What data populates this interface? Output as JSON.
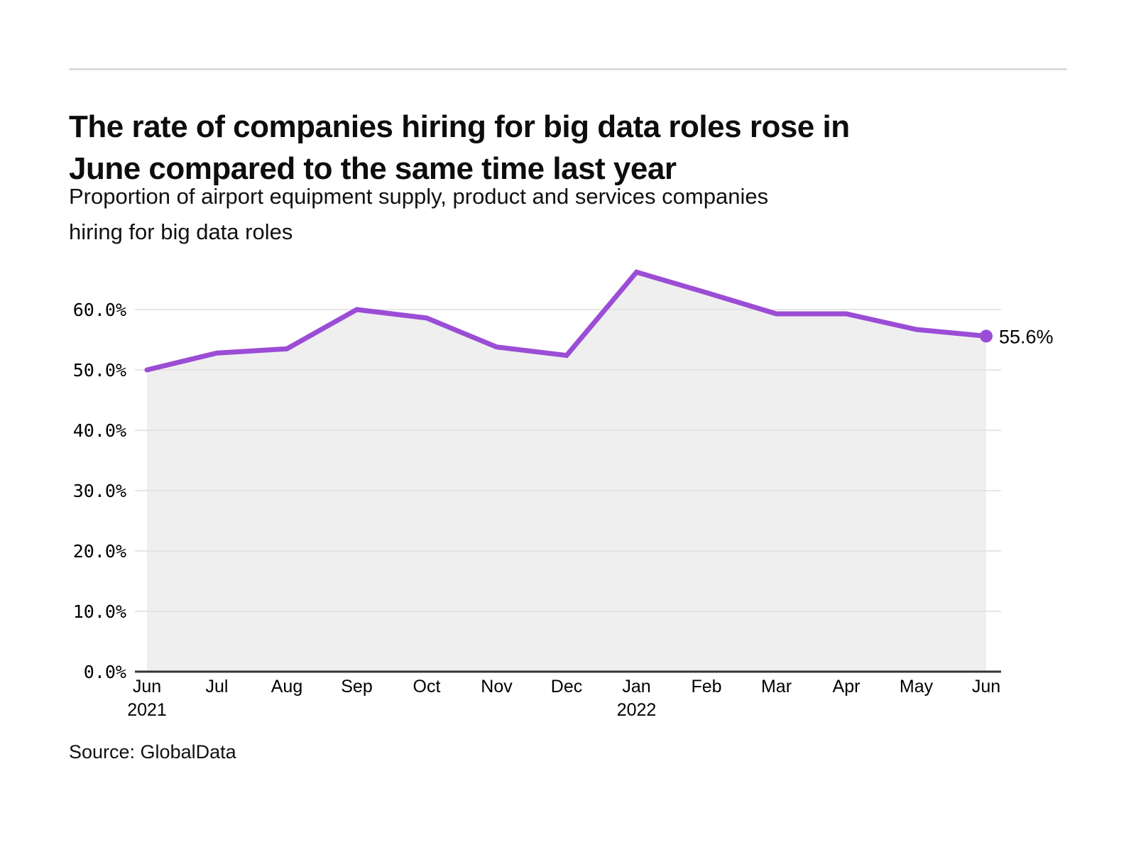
{
  "header": {
    "title_lines": [
      "The rate of companies hiring for big data roles rose in",
      "June compared to the same time last year"
    ],
    "subtitle_lines": [
      "Proportion of airport equipment supply, product and services companies",
      "hiring for big data roles"
    ]
  },
  "footer": {
    "source": "Source: GlobalData"
  },
  "chart_data": {
    "type": "area",
    "title": "Proportion of airport equipment supply, product and services companies hiring for big data roles",
    "x_labels": [
      {
        "month": "Jun",
        "year": "2021"
      },
      {
        "month": "Jul"
      },
      {
        "month": "Aug"
      },
      {
        "month": "Sep"
      },
      {
        "month": "Oct"
      },
      {
        "month": "Nov"
      },
      {
        "month": "Dec"
      },
      {
        "month": "Jan",
        "year": "2022"
      },
      {
        "month": "Feb"
      },
      {
        "month": "Mar"
      },
      {
        "month": "Apr"
      },
      {
        "month": "May"
      },
      {
        "month": "Jun"
      }
    ],
    "values": [
      50.0,
      52.8,
      53.5,
      60.0,
      58.6,
      53.8,
      52.4,
      66.2,
      62.8,
      59.3,
      59.3,
      56.7,
      55.6
    ],
    "y_tick_labels": [
      "0.0%",
      "10.0%",
      "20.0%",
      "30.0%",
      "40.0%",
      "50.0%",
      "60.0%"
    ],
    "ylim": [
      0,
      68.9
    ],
    "grid": true,
    "legend": "none",
    "end_label": "55.6%",
    "line_color": "#9b4dd6",
    "area_color": "#efefef",
    "grid_color": "#dfdfdf",
    "axis_color": "#333333"
  }
}
